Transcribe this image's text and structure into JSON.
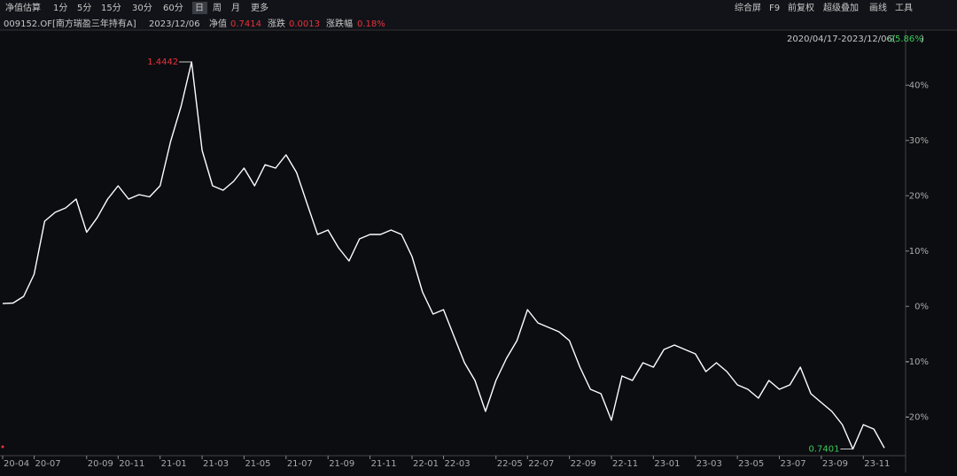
{
  "toolbar": {
    "left": [
      "净值估算",
      "1分",
      "5分",
      "15分",
      "30分",
      "60分",
      "日",
      "周",
      "月",
      "更多"
    ],
    "right": [
      "综合屏",
      "F9",
      "前复权",
      "超级叠加",
      "画线",
      "工具"
    ]
  },
  "info": {
    "code": "009152.OF[南方瑞盈三年持有A]",
    "date": "2023/12/06",
    "nav_label": "净值",
    "nav": "0.7414",
    "change_label": "涨跌",
    "change": "0.0013",
    "pct_label": "涨跌幅",
    "pct": "0.18%"
  },
  "range": {
    "text": "2020/04/17-2023/12/06(",
    "pct": "-25.86%",
    "close": ")"
  },
  "chart_data": {
    "type": "line",
    "categories": [
      "20-04",
      null,
      null,
      "20-07",
      null,
      null,
      null,
      null,
      "20-09",
      null,
      null,
      "20-11",
      null,
      null,
      null,
      "21-01",
      null,
      null,
      null,
      "21-03",
      null,
      null,
      null,
      "21-05",
      null,
      null,
      null,
      "21-07",
      null,
      null,
      null,
      "21-09",
      null,
      null,
      null,
      "21-11",
      null,
      null,
      null,
      "22-01",
      null,
      null,
      "22-03",
      null,
      null,
      null,
      null,
      "22-05",
      null,
      null,
      "22-07",
      null,
      null,
      null,
      "22-09",
      null,
      null,
      null,
      "22-11",
      null,
      null,
      null,
      "23-01",
      null,
      null,
      null,
      "23-03",
      null,
      null,
      null,
      "23-05",
      null,
      null,
      null,
      "23-07",
      null,
      null,
      null,
      "23-09",
      null,
      null,
      null,
      "23-11",
      null,
      null
    ],
    "series": [
      {
        "name": "009152.OF",
        "color": "#ffffff",
        "values": [
          0.5,
          0.6,
          1.8,
          5.8,
          15.4,
          17,
          17.8,
          19.4,
          13.4,
          16,
          19.4,
          21.8,
          19.4,
          20.2,
          19.8,
          21.8,
          29.8,
          36.2,
          44.2,
          28.2,
          21.8,
          21,
          22.6,
          25,
          21.8,
          25.6,
          25,
          27.4,
          24.2,
          18.6,
          13,
          13.8,
          10.6,
          8.2,
          12.2,
          13,
          13,
          13.8,
          13,
          9,
          2.6,
          -1.4,
          -0.6,
          -5.4,
          -10.2,
          -13.4,
          -19,
          -13.4,
          -9.4,
          -6.2,
          -0.6,
          -3,
          -3.8,
          -4.6,
          -6.2,
          -11,
          -15,
          -15.8,
          -20.6,
          -12.6,
          -13.4,
          -10.2,
          -11,
          -7.8,
          -7,
          -7.8,
          -8.6,
          -11.8,
          -10.2,
          -11.8,
          -14.2,
          -15,
          -16.6,
          -13.4,
          -15,
          -14.2,
          -11,
          -15.8,
          -17.4,
          -19,
          -21.4,
          -25.8,
          -21.4,
          -22.2,
          -25.6
        ]
      }
    ],
    "annotations": [
      {
        "text": "1.4442",
        "index": 18,
        "color": "#e8323c"
      },
      {
        "text": "0.7401",
        "index": 81,
        "color": "#3cc85a"
      }
    ],
    "ylim": [
      -27,
      46.6
    ],
    "yticks": [
      {
        "value": -20,
        "label": "-20%"
      },
      {
        "value": -10,
        "label": "-10%"
      },
      {
        "value": 0,
        "label": "0%"
      },
      {
        "value": 10,
        "label": "10%"
      },
      {
        "value": 20,
        "label": "20%"
      },
      {
        "value": 30,
        "label": "30%"
      },
      {
        "value": 40,
        "label": "40%"
      }
    ],
    "grid": false
  }
}
